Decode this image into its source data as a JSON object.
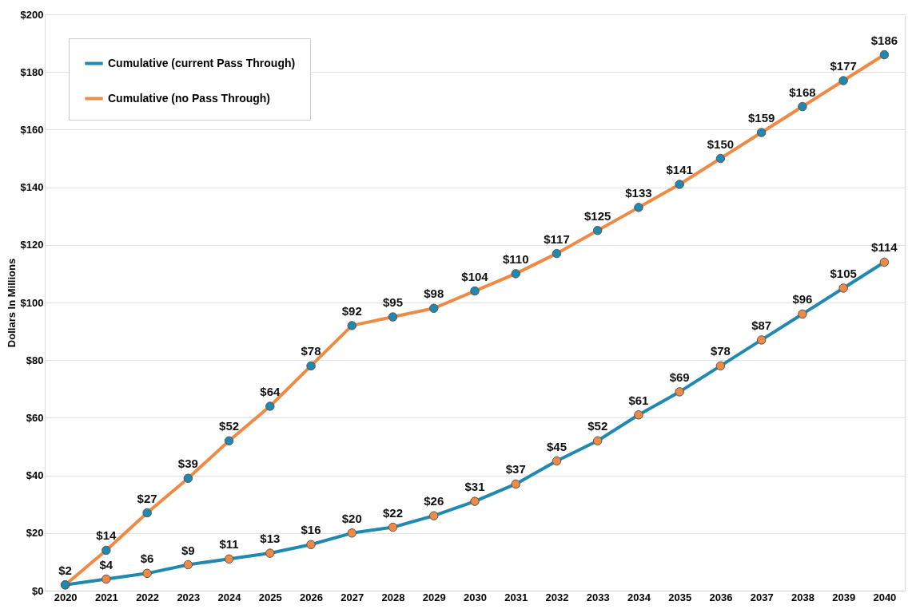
{
  "chart_data": {
    "type": "line",
    "ylabel": "Dollars In Millions",
    "categories": [
      "2020",
      "2021",
      "2022",
      "2023",
      "2024",
      "2025",
      "2026",
      "2027",
      "2028",
      "2029",
      "2030",
      "2031",
      "2032",
      "2033",
      "2034",
      "2035",
      "2036",
      "2037",
      "2038",
      "2039",
      "2040"
    ],
    "series": [
      {
        "name": "Cumulative (current Pass Through)",
        "color": "#2188b0",
        "values": [
          2,
          4,
          6,
          9,
          11,
          13,
          16,
          20,
          22,
          26,
          31,
          37,
          45,
          52,
          61,
          69,
          78,
          87,
          96,
          105,
          114
        ],
        "value_labels": [
          null,
          "$4",
          "$6",
          "$9",
          "$11",
          "$13",
          "$16",
          "$20",
          "$22",
          "$26",
          "$31",
          "$37",
          "$45",
          "$52",
          "$61",
          "$69",
          "$78",
          "$87",
          "$96",
          "$105",
          "$114"
        ]
      },
      {
        "name": "Cumulative (no Pass Through)",
        "color": "#ef8a44",
        "values": [
          2,
          14,
          27,
          39,
          52,
          64,
          78,
          92,
          95,
          98,
          104,
          110,
          117,
          125,
          133,
          141,
          150,
          159,
          168,
          177,
          186
        ],
        "value_labels": [
          "$2",
          "$14",
          "$27",
          "$39",
          "$52",
          "$64",
          "$78",
          "$92",
          "$95",
          "$98",
          "$104",
          "$110",
          "$117",
          "$125",
          "$133",
          "$141",
          "$150",
          "$159",
          "$168",
          "$177",
          "$186"
        ]
      }
    ],
    "ylim": [
      0,
      200
    ],
    "yticks": [
      {
        "value": 0,
        "label": "$0"
      },
      {
        "value": 20,
        "label": "$20"
      },
      {
        "value": 40,
        "label": "$40"
      },
      {
        "value": 60,
        "label": "$60"
      },
      {
        "value": 80,
        "label": "$80"
      },
      {
        "value": 100,
        "label": "$100"
      },
      {
        "value": 120,
        "label": "$120"
      },
      {
        "value": 140,
        "label": "$140"
      },
      {
        "value": 160,
        "label": "$160"
      },
      {
        "value": 180,
        "label": "$180"
      },
      {
        "value": 200,
        "label": "$200"
      }
    ],
    "grid": "y",
    "legend": "top left",
    "marker": "circle",
    "line_style": "solid"
  }
}
